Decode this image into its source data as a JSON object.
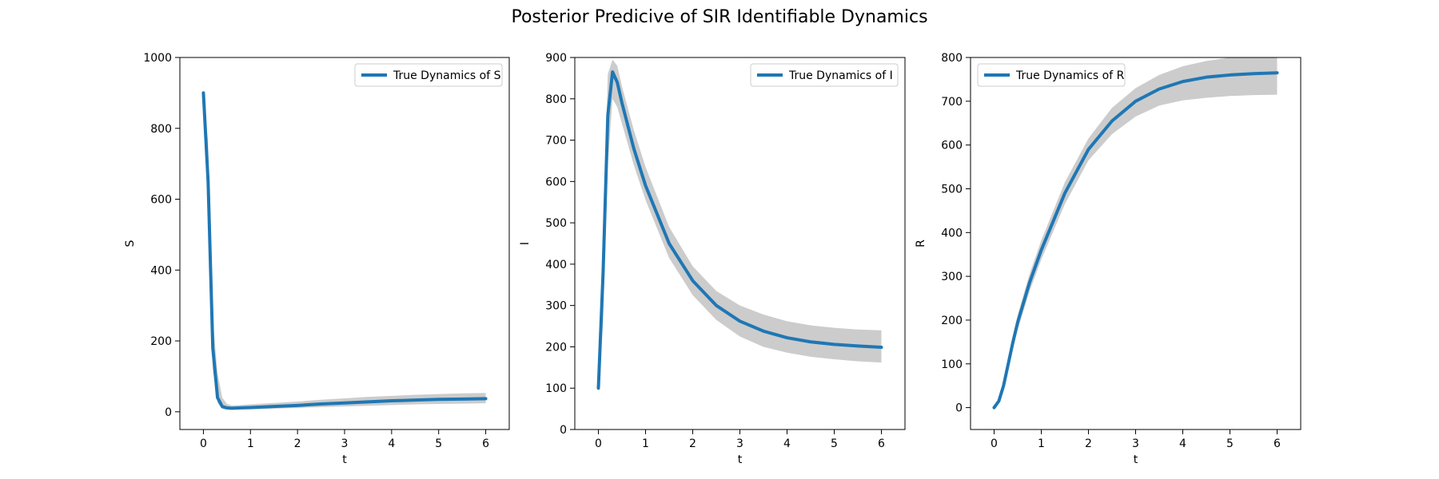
{
  "figure": {
    "title": "Posterior Predicive of SIR Identifiable Dynamics"
  },
  "chart_data": [
    {
      "type": "line",
      "xlabel": "t",
      "ylabel": "S",
      "xlim": [
        -0.5,
        6.5
      ],
      "ylim": [
        -50,
        1000
      ],
      "xticks": [
        0,
        1,
        2,
        3,
        4,
        5,
        6
      ],
      "yticks": [
        0,
        200,
        400,
        600,
        800,
        1000
      ],
      "legend_position": "upper right",
      "series": [
        {
          "name": "True Dynamics of S",
          "color": "#1f77b4",
          "x": [
            0,
            0.1,
            0.2,
            0.3,
            0.4,
            0.5,
            0.6,
            0.8,
            1,
            1.5,
            2,
            2.5,
            3,
            3.5,
            4,
            4.5,
            5,
            5.5,
            6
          ],
          "y": [
            900,
            650,
            180,
            40,
            15,
            11,
            10,
            11,
            12,
            15,
            18,
            22,
            25,
            28,
            31,
            33,
            35,
            36,
            37
          ]
        }
      ],
      "band": {
        "color": "#cccccc",
        "x": [
          0,
          0.1,
          0.2,
          0.3,
          0.4,
          0.5,
          0.6,
          0.8,
          1,
          1.5,
          2,
          2.5,
          3,
          3.5,
          4,
          4.5,
          5,
          5.5,
          6
        ],
        "lower": [
          900,
          550,
          120,
          25,
          8,
          6,
          6,
          7,
          7,
          9,
          11,
          13,
          15,
          17,
          19,
          21,
          22,
          23,
          24
        ],
        "upper": [
          900,
          760,
          260,
          110,
          40,
          22,
          18,
          19,
          21,
          25,
          29,
          34,
          38,
          42,
          45,
          48,
          50,
          52,
          53
        ]
      }
    },
    {
      "type": "line",
      "xlabel": "t",
      "ylabel": "I",
      "xlim": [
        -0.5,
        6.5
      ],
      "ylim": [
        0,
        900
      ],
      "xticks": [
        0,
        1,
        2,
        3,
        4,
        5,
        6
      ],
      "yticks": [
        0,
        100,
        200,
        300,
        400,
        500,
        600,
        700,
        800,
        900
      ],
      "legend_position": "upper right",
      "series": [
        {
          "name": "True Dynamics of I",
          "color": "#1f77b4",
          "x": [
            0,
            0.1,
            0.2,
            0.3,
            0.4,
            0.5,
            0.75,
            1,
            1.5,
            2,
            2.5,
            3,
            3.5,
            4,
            4.5,
            5,
            5.5,
            6
          ],
          "y": [
            100,
            380,
            760,
            865,
            840,
            790,
            680,
            590,
            450,
            360,
            300,
            262,
            238,
            222,
            212,
            206,
            202,
            199
          ]
        }
      ],
      "band": {
        "color": "#cccccc",
        "x": [
          0,
          0.1,
          0.2,
          0.3,
          0.4,
          0.5,
          0.75,
          1,
          1.5,
          2,
          2.5,
          3,
          3.5,
          4,
          4.5,
          5,
          5.5,
          6
        ],
        "lower": [
          100,
          260,
          640,
          800,
          780,
          740,
          640,
          555,
          415,
          325,
          265,
          225,
          200,
          186,
          176,
          170,
          165,
          162
        ],
        "upper": [
          100,
          480,
          860,
          895,
          880,
          830,
          725,
          635,
          490,
          395,
          335,
          300,
          278,
          262,
          252,
          246,
          242,
          240
        ]
      }
    },
    {
      "type": "line",
      "xlabel": "t",
      "ylabel": "R",
      "xlim": [
        -0.5,
        6.5
      ],
      "ylim": [
        -50,
        800
      ],
      "xticks": [
        0,
        1,
        2,
        3,
        4,
        5,
        6
      ],
      "yticks": [
        0,
        100,
        200,
        300,
        400,
        500,
        600,
        700,
        800
      ],
      "legend_position": "upper left",
      "series": [
        {
          "name": "True Dynamics of R",
          "color": "#1f77b4",
          "x": [
            0,
            0.1,
            0.2,
            0.3,
            0.4,
            0.5,
            0.75,
            1,
            1.5,
            2,
            2.5,
            3,
            3.5,
            4,
            4.5,
            5,
            5.5,
            6
          ],
          "y": [
            0,
            15,
            50,
            100,
            150,
            195,
            285,
            360,
            490,
            590,
            655,
            700,
            728,
            745,
            755,
            760,
            763,
            765
          ]
        }
      ],
      "band": {
        "color": "#cccccc",
        "x": [
          0,
          0.1,
          0.2,
          0.3,
          0.4,
          0.5,
          0.75,
          1,
          1.5,
          2,
          2.5,
          3,
          3.5,
          4,
          4.5,
          5,
          5.5,
          6
        ],
        "lower": [
          0,
          12,
          42,
          88,
          135,
          178,
          265,
          338,
          465,
          565,
          625,
          665,
          690,
          702,
          708,
          712,
          714,
          715
        ],
        "upper": [
          0,
          18,
          58,
          112,
          165,
          212,
          305,
          382,
          515,
          615,
          685,
          730,
          760,
          780,
          792,
          800,
          806,
          810
        ]
      }
    }
  ]
}
